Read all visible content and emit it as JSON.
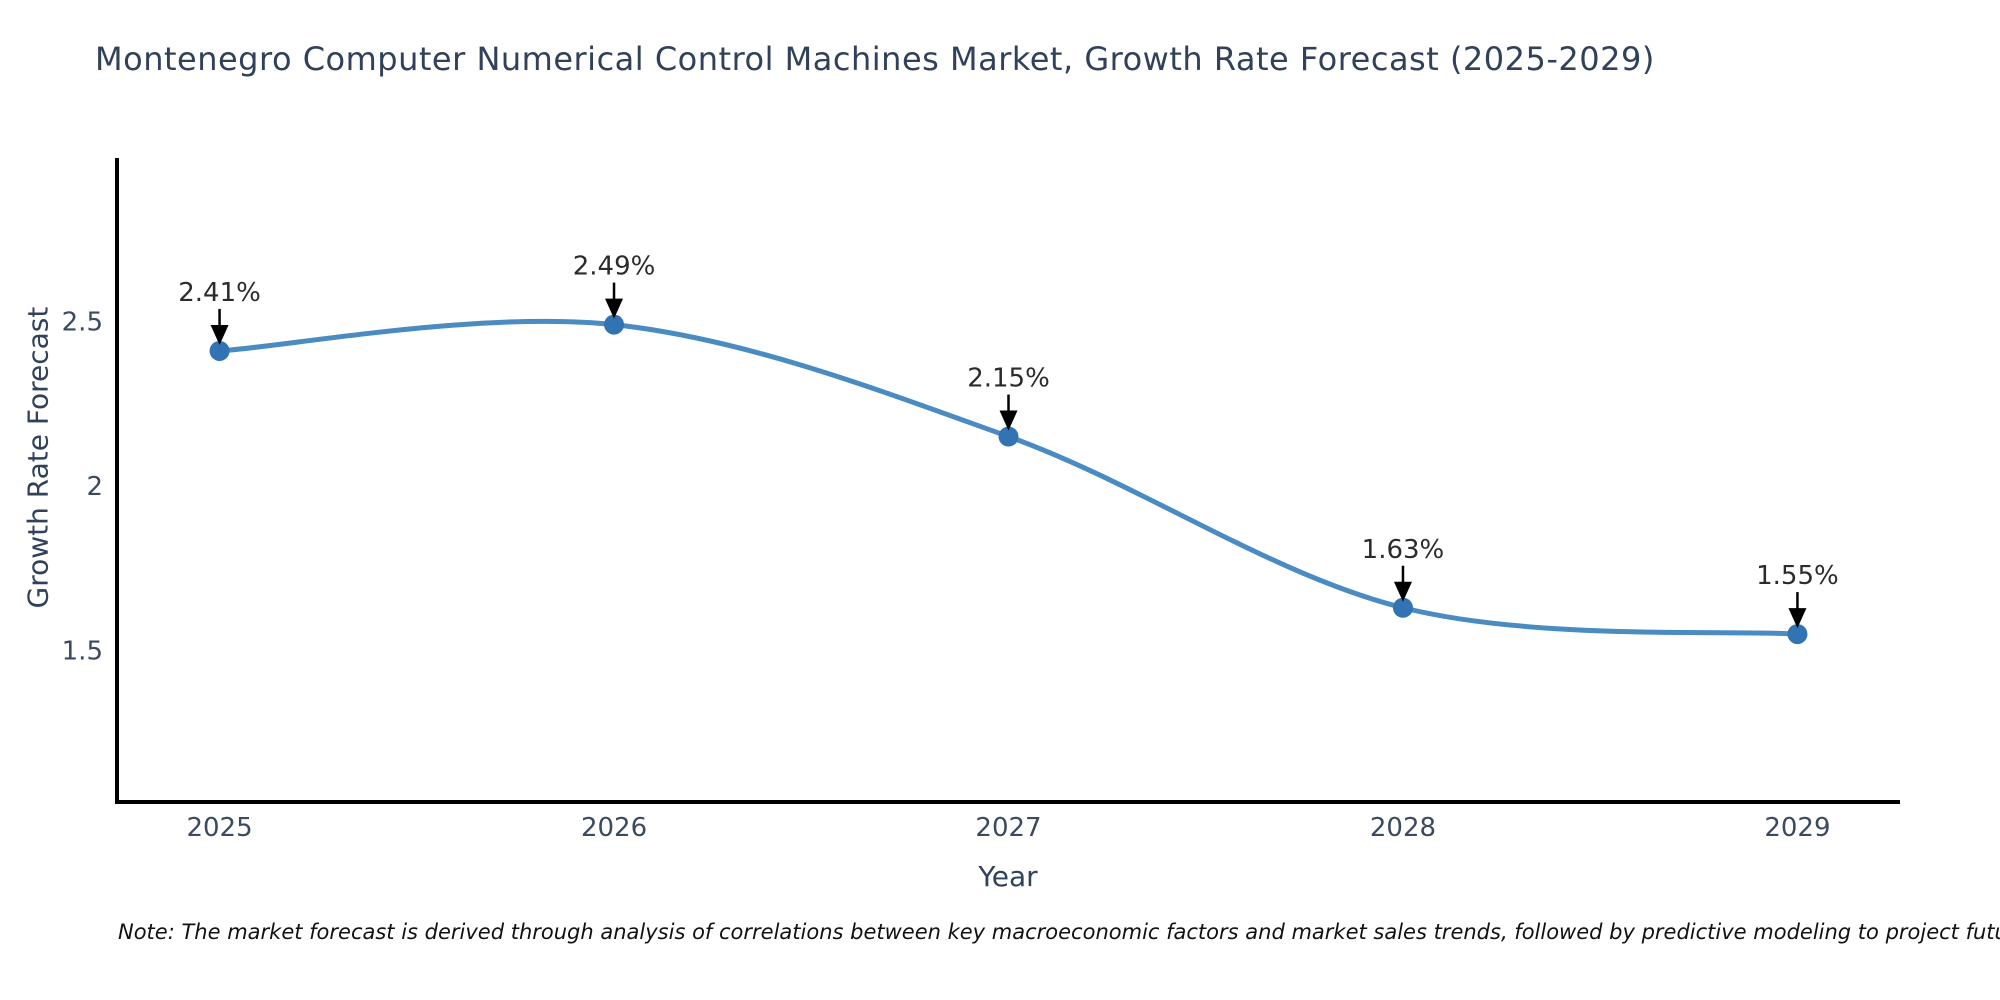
{
  "title": "Montenegro Computer Numerical Control Machines Market, Growth Rate Forecast (2025-2029)",
  "note": "Note: The market forecast is derived through analysis of correlations between key macroeconomic factors and market sales trends, followed by predictive modeling to project future sales",
  "colors": {
    "line": "#4a8bc2",
    "marker": "#3273b4",
    "axis_line": "#000000",
    "title_text": "#31415a",
    "tick_text": "#3b4a5e",
    "annotation_text": "#2b2b2b",
    "arrow": "#000000",
    "background": "#ffffff"
  },
  "chart_data": {
    "type": "line",
    "title": "Montenegro Computer Numerical Control Machines Market, Growth Rate Forecast (2025-2029)",
    "xlabel": "Year",
    "ylabel": "Growth Rate Forecast",
    "x": [
      2025,
      2026,
      2027,
      2028,
      2029
    ],
    "categories": [
      "2025",
      "2026",
      "2027",
      "2028",
      "2029"
    ],
    "series": [
      {
        "name": "Growth Rate Forecast",
        "values": [
          2.41,
          2.49,
          2.15,
          1.63,
          1.55
        ]
      }
    ],
    "point_labels": [
      "2.41%",
      "2.49%",
      "2.15%",
      "1.63%",
      "1.55%"
    ],
    "yticks": [
      1.5,
      2.0,
      2.5
    ],
    "ytick_labels": [
      "1.5",
      "2",
      "2.5"
    ],
    "xlim": [
      2024.74,
      2029.26
    ],
    "ylim": [
      1.04,
      2.99
    ],
    "grid": false,
    "legend": "none",
    "line_shape": "spline",
    "annotation_style": "label-with-down-arrow"
  }
}
